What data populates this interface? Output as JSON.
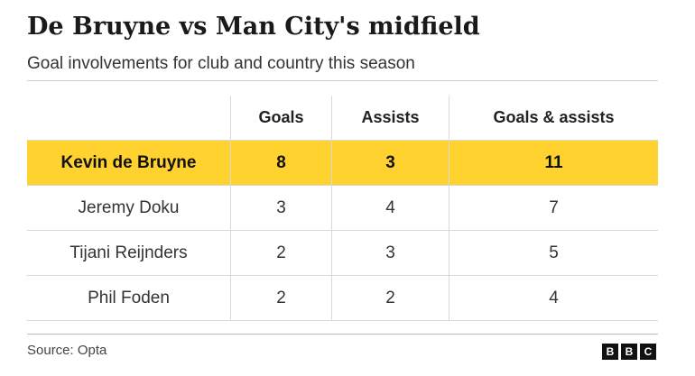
{
  "title": "De Bruyne vs Man City's midfield",
  "subtitle": "Goal involvements for club and country this season",
  "source": "Source: Opta",
  "logo": [
    "B",
    "B",
    "C"
  ],
  "colors": {
    "highlight": "#ffd230",
    "grid": "#d9d9d9",
    "text": "#222222"
  },
  "chart_data": {
    "type": "table",
    "title": "De Bruyne vs Man City's midfield",
    "subtitle": "Goal involvements for club and country this season",
    "columns": [
      "",
      "Goals",
      "Assists",
      "Goals & assists"
    ],
    "rows": [
      {
        "name": "Kevin de Bruyne",
        "goals": "8",
        "assists": "3",
        "total": "11",
        "highlighted": true
      },
      {
        "name": "Jeremy Doku",
        "goals": "3",
        "assists": "4",
        "total": "7",
        "highlighted": false
      },
      {
        "name": "Tijani Reijnders",
        "goals": "2",
        "assists": "3",
        "total": "5",
        "highlighted": false
      },
      {
        "name": "Phil Foden",
        "goals": "2",
        "assists": "2",
        "total": "4",
        "highlighted": false
      }
    ]
  }
}
